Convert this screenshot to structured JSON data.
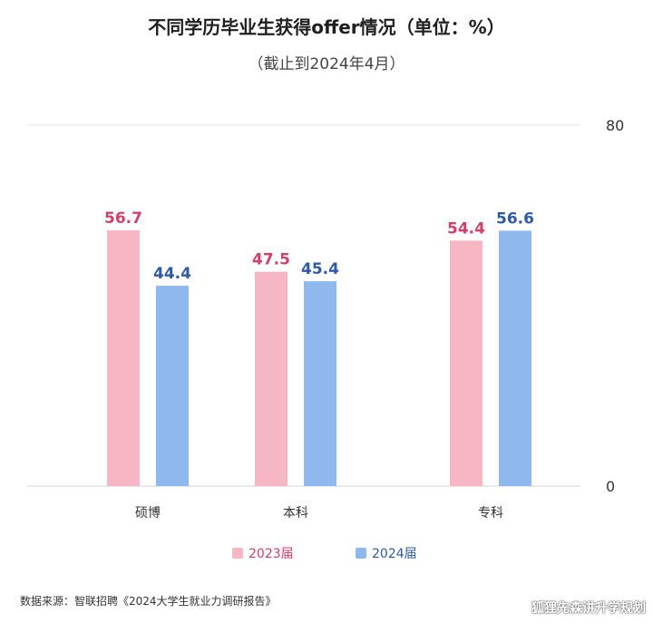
{
  "title": "不同学历毕业生获得offer情况（单位：%）",
  "subtitle": "（截止到2024年4月）",
  "source": "数据来源：智联招聘《2024大学生就业力调研报告》",
  "watermark": "狐狸先森讲升学规划",
  "colors": {
    "2023届": "#f6b6c4",
    "2024届": "#8fb8ee",
    "label_2023": "#d0406a",
    "label_2024": "#2f5aa8"
  },
  "chart_data": {
    "type": "bar",
    "categories": [
      "硕博",
      "本科",
      "专科"
    ],
    "series": [
      {
        "name": "2023届",
        "values": [
          56.7,
          47.5,
          54.4
        ]
      },
      {
        "name": "2024届",
        "values": [
          44.4,
          45.4,
          56.6
        ]
      }
    ],
    "ylim": [
      0,
      80
    ],
    "yticks": [
      "80",
      "0"
    ],
    "y_axis_side": "right",
    "legend_position": "bottom",
    "value_labels": true
  }
}
